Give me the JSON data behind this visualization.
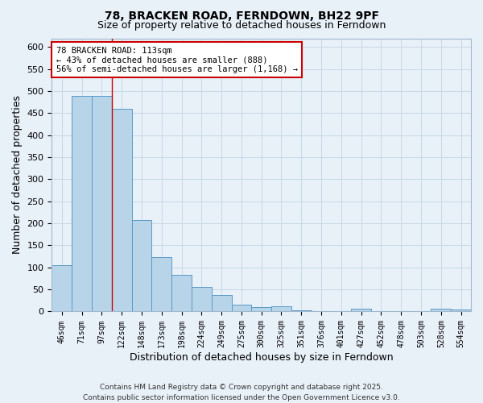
{
  "title": "78, BRACKEN ROAD, FERNDOWN, BH22 9PF",
  "subtitle": "Size of property relative to detached houses in Ferndown",
  "xlabel": "Distribution of detached houses by size in Ferndown",
  "ylabel": "Number of detached properties",
  "categories": [
    "46sqm",
    "71sqm",
    "97sqm",
    "122sqm",
    "148sqm",
    "173sqm",
    "198sqm",
    "224sqm",
    "249sqm",
    "275sqm",
    "300sqm",
    "325sqm",
    "351sqm",
    "376sqm",
    "401sqm",
    "427sqm",
    "452sqm",
    "478sqm",
    "503sqm",
    "528sqm",
    "554sqm"
  ],
  "values": [
    105,
    490,
    490,
    460,
    207,
    124,
    84,
    56,
    38,
    15,
    10,
    12,
    2,
    0,
    0,
    7,
    0,
    0,
    0,
    6,
    5
  ],
  "bar_color": "#b8d4e8",
  "bar_edge_color": "#5b9ac8",
  "grid_color": "#c8d8e8",
  "bg_color": "#e8f0f8",
  "red_line_x": 2.5,
  "annotation_text": "78 BRACKEN ROAD: 113sqm\n← 43% of detached houses are smaller (888)\n56% of semi-detached houses are larger (1,168) →",
  "annotation_box_color": "#ffffff",
  "annotation_box_edge": "#cc0000",
  "footer": "Contains HM Land Registry data © Crown copyright and database right 2025.\nContains public sector information licensed under the Open Government Licence v3.0.",
  "ylim": [
    0,
    620
  ],
  "yticks": [
    0,
    50,
    100,
    150,
    200,
    250,
    300,
    350,
    400,
    450,
    500,
    550,
    600
  ]
}
